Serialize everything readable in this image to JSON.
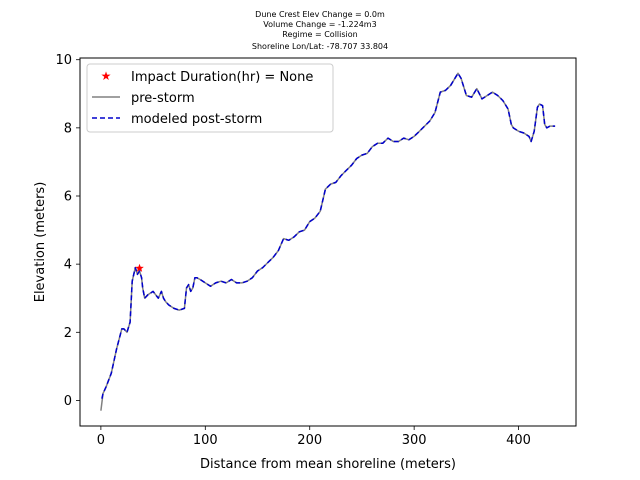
{
  "chart_data": {
    "type": "line",
    "title_lines": [
      "Dune Crest Elev Change = 0.0m",
      "Volume Change = -1.224m3",
      "Regime = Collision",
      "Shoreline Lon/Lat: -78.707 33.804"
    ],
    "xlabel": "Distance from mean shoreline (meters)",
    "ylabel": "Elevation (meters)",
    "xlim": [
      -20,
      455
    ],
    "ylim": [
      -0.75,
      10.05
    ],
    "xticks": [
      0,
      100,
      200,
      300,
      400
    ],
    "yticks": [
      0,
      2,
      4,
      6,
      8,
      10
    ],
    "grid": false,
    "legend_position": "top-left",
    "legend": [
      {
        "label": "Impact Duration(hr) = None",
        "marker": "star",
        "color": "#ff0000"
      },
      {
        "label": "pre-storm",
        "style": "solid",
        "color": "#808080"
      },
      {
        "label": "modeled post-storm",
        "style": "dashed",
        "color": "#0000cc"
      }
    ],
    "colors": {
      "pre_storm": "#808080",
      "post_storm": "#0000cc",
      "impact_marker": "#ff0000"
    },
    "impact_point": {
      "x": 37,
      "y": 3.88
    },
    "series": [
      {
        "name": "pre-storm",
        "x": [
          0,
          2,
          5,
          10,
          15,
          20,
          22,
          25,
          28,
          30,
          33,
          35,
          37,
          39,
          40,
          42,
          45,
          50,
          55,
          58,
          60,
          62,
          65,
          70,
          75,
          80,
          82,
          84,
          86,
          88,
          90,
          92,
          95,
          100,
          105,
          110,
          115,
          120,
          125,
          130,
          135,
          140,
          145,
          150,
          155,
          160,
          165,
          170,
          175,
          180,
          185,
          190,
          195,
          200,
          205,
          210,
          215,
          220,
          225,
          230,
          235,
          240,
          245,
          250,
          255,
          260,
          265,
          270,
          275,
          280,
          285,
          290,
          295,
          300,
          305,
          310,
          315,
          320,
          325,
          330,
          335,
          340,
          342,
          345,
          350,
          355,
          360,
          365,
          370,
          375,
          380,
          385,
          390,
          393,
          395,
          400,
          405,
          410,
          412,
          415,
          418,
          420,
          423,
          425,
          427,
          430,
          435
        ],
        "values": [
          -0.3,
          0.2,
          0.4,
          0.8,
          1.5,
          2.1,
          2.1,
          2.0,
          2.3,
          3.5,
          3.9,
          3.7,
          3.8,
          3.6,
          3.3,
          3.0,
          3.1,
          3.2,
          3.0,
          3.2,
          3.0,
          2.9,
          2.8,
          2.7,
          2.65,
          2.7,
          3.3,
          3.4,
          3.2,
          3.3,
          3.6,
          3.6,
          3.55,
          3.45,
          3.35,
          3.45,
          3.5,
          3.45,
          3.55,
          3.45,
          3.45,
          3.5,
          3.6,
          3.8,
          3.9,
          4.05,
          4.2,
          4.4,
          4.75,
          4.7,
          4.8,
          4.95,
          5.0,
          5.25,
          5.35,
          5.55,
          6.2,
          6.35,
          6.4,
          6.6,
          6.75,
          6.9,
          7.1,
          7.2,
          7.25,
          7.45,
          7.55,
          7.55,
          7.7,
          7.6,
          7.6,
          7.7,
          7.65,
          7.75,
          7.9,
          8.05,
          8.2,
          8.45,
          9.05,
          9.1,
          9.25,
          9.5,
          9.6,
          9.45,
          8.95,
          8.9,
          9.15,
          8.85,
          8.95,
          9.05,
          8.95,
          8.8,
          8.55,
          8.1,
          8.0,
          7.9,
          7.85,
          7.75,
          7.6,
          7.9,
          8.6,
          8.7,
          8.65,
          8.1,
          8.0,
          8.05,
          8.05
        ]
      },
      {
        "name": "modeled post-storm",
        "x": [
          1,
          2,
          5,
          10,
          15,
          20,
          22,
          25,
          28,
          30,
          33,
          35,
          37,
          39,
          40,
          42,
          45,
          50,
          55,
          58,
          60,
          62,
          65,
          70,
          75,
          80,
          82,
          84,
          86,
          88,
          90,
          92,
          95,
          100,
          105,
          110,
          115,
          120,
          125,
          130,
          135,
          140,
          145,
          150,
          155,
          160,
          165,
          170,
          175,
          180,
          185,
          190,
          195,
          200,
          205,
          210,
          215,
          220,
          225,
          230,
          235,
          240,
          245,
          250,
          255,
          260,
          265,
          270,
          275,
          280,
          285,
          290,
          295,
          300,
          305,
          310,
          315,
          320,
          325,
          330,
          335,
          340,
          342,
          345,
          350,
          355,
          360,
          365,
          370,
          375,
          380,
          385,
          390,
          393,
          395,
          400,
          405,
          410,
          412,
          415,
          418,
          420,
          423,
          425,
          427,
          430,
          435
        ],
        "values": [
          0.05,
          0.2,
          0.4,
          0.8,
          1.5,
          2.1,
          2.1,
          2.0,
          2.3,
          3.5,
          3.9,
          3.7,
          3.8,
          3.6,
          3.3,
          3.0,
          3.1,
          3.2,
          3.0,
          3.2,
          3.0,
          2.9,
          2.8,
          2.7,
          2.65,
          2.7,
          3.3,
          3.4,
          3.2,
          3.3,
          3.6,
          3.6,
          3.55,
          3.45,
          3.35,
          3.45,
          3.5,
          3.45,
          3.55,
          3.45,
          3.45,
          3.5,
          3.6,
          3.8,
          3.9,
          4.05,
          4.2,
          4.4,
          4.75,
          4.7,
          4.8,
          4.95,
          5.0,
          5.25,
          5.35,
          5.55,
          6.2,
          6.35,
          6.4,
          6.6,
          6.75,
          6.9,
          7.1,
          7.2,
          7.25,
          7.45,
          7.55,
          7.55,
          7.7,
          7.6,
          7.6,
          7.7,
          7.65,
          7.75,
          7.9,
          8.05,
          8.2,
          8.45,
          9.05,
          9.1,
          9.25,
          9.5,
          9.6,
          9.45,
          8.95,
          8.9,
          9.15,
          8.85,
          8.95,
          9.05,
          8.95,
          8.8,
          8.55,
          8.1,
          8.0,
          7.9,
          7.85,
          7.75,
          7.6,
          7.9,
          8.6,
          8.7,
          8.65,
          8.1,
          8.0,
          8.05,
          8.05
        ]
      }
    ]
  }
}
